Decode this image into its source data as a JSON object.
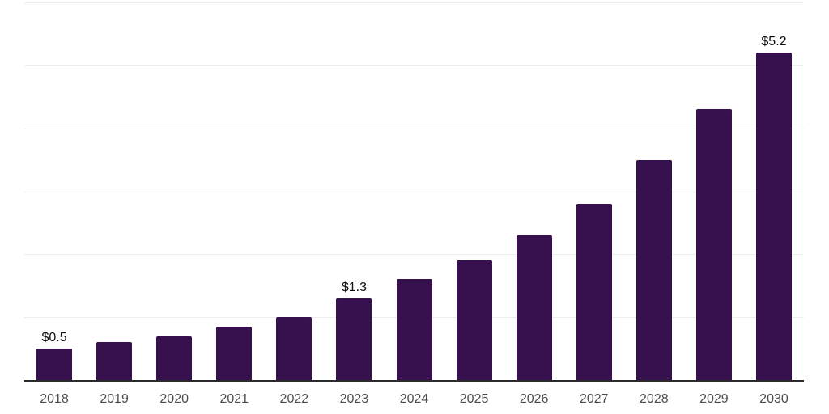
{
  "chart_data": {
    "type": "bar",
    "title": "",
    "xlabel": "",
    "ylabel": "",
    "categories": [
      "2018",
      "2019",
      "2020",
      "2021",
      "2022",
      "2023",
      "2024",
      "2025",
      "2026",
      "2027",
      "2028",
      "2029",
      "2030"
    ],
    "values": [
      0.5,
      0.6,
      0.7,
      0.85,
      1.0,
      1.3,
      1.6,
      1.9,
      2.3,
      2.8,
      3.5,
      4.3,
      5.2
    ],
    "bar_labels": [
      "$0.5",
      "",
      "",
      "",
      "",
      "$1.3",
      "",
      "",
      "",
      "",
      "",
      "",
      "$5.2"
    ],
    "ylim": [
      0,
      6
    ],
    "gridline_step": 1,
    "grid": "horizontal-only",
    "legend_position": "none",
    "colors": {
      "bar": "#36114D",
      "gridline": "#ececec",
      "axis_line": "#2b2b2b",
      "tick_label": "#4d4d4d",
      "data_label": "#0d0d0d",
      "background": "#ffffff"
    }
  }
}
